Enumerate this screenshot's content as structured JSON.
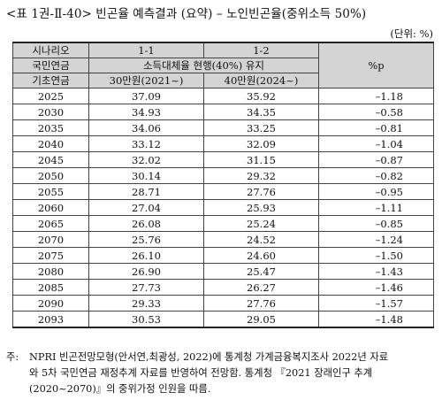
{
  "title": "<표 1권-Ⅱ-40> 빈곤율 예측결과 (요약) – 노인빈곤율(중위소득 50%)",
  "unit": "(단위: %)",
  "table": {
    "header": {
      "scenario_label": "시나리오",
      "col_1": "1-1",
      "col_2": "1-2",
      "col_diff": "%p",
      "row2_label": "국민연금",
      "row2_span": "소득대체율 현행(40%) 유지",
      "row3_label": "기초연금",
      "row3_col1": "30만원(2021~)",
      "row3_col2": "40만원(2024~)"
    },
    "rows": [
      {
        "year": "2025",
        "v1": "37.09",
        "v2": "35.92",
        "diff": "–1.18"
      },
      {
        "year": "2030",
        "v1": "34.93",
        "v2": "34.35",
        "diff": "–0.58"
      },
      {
        "year": "2035",
        "v1": "34.06",
        "v2": "33.25",
        "diff": "–0.81"
      },
      {
        "year": "2040",
        "v1": "33.12",
        "v2": "32.09",
        "diff": "–1.04"
      },
      {
        "year": "2045",
        "v1": "32.02",
        "v2": "31.15",
        "diff": "–0.87"
      },
      {
        "year": "2050",
        "v1": "30.14",
        "v2": "29.32",
        "diff": "–0.82"
      },
      {
        "year": "2055",
        "v1": "28.71",
        "v2": "27.76",
        "diff": "–0.95"
      },
      {
        "year": "2060",
        "v1": "27.04",
        "v2": "25.93",
        "diff": "–1.11"
      },
      {
        "year": "2065",
        "v1": "26.08",
        "v2": "25.24",
        "diff": "–0.85"
      },
      {
        "year": "2070",
        "v1": "25.76",
        "v2": "24.52",
        "diff": "–1.24"
      },
      {
        "year": "2075",
        "v1": "26.10",
        "v2": "24.60",
        "diff": "–1.50"
      },
      {
        "year": "2080",
        "v1": "26.90",
        "v2": "25.47",
        "diff": "–1.43"
      },
      {
        "year": "2085",
        "v1": "27.73",
        "v2": "26.27",
        "diff": "–1.46"
      },
      {
        "year": "2090",
        "v1": "29.33",
        "v2": "27.76",
        "diff": "–1.57"
      },
      {
        "year": "2093",
        "v1": "30.53",
        "v2": "29.05",
        "diff": "–1.48"
      }
    ]
  },
  "note": {
    "label": "주:",
    "line1": "NPRI 빈곤전망모형(안서연,최광성, 2022)에 통계청 가계금융복지조사 2022년 자료",
    "line2": "와 5차 국민연금 재정추계 자료를 반영하여 전망함. 통계청 『2021 장래인구 추계",
    "line3": "(2020~2070)』의 중위가정 인원을 따름."
  }
}
